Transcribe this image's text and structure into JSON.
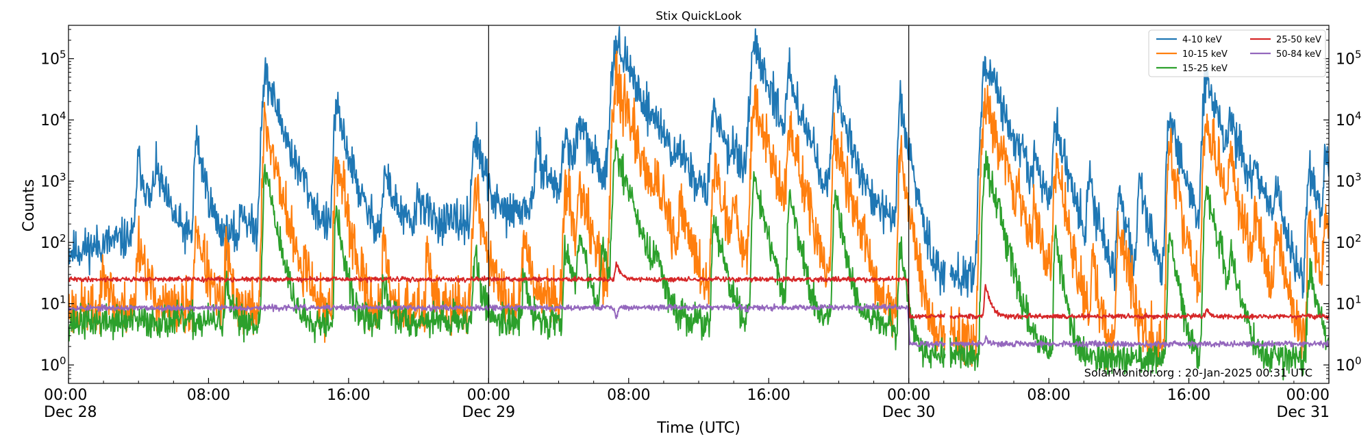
{
  "chart_data": {
    "type": "line",
    "title": "Stix QuickLook",
    "xlabel": "Time (UTC)",
    "ylabel": "Counts",
    "yscale": "log",
    "ylim": [
      0.5,
      350000
    ],
    "xlim_hours": [
      0,
      72
    ],
    "grid": false,
    "legend_location": "top-right",
    "day_separators_hours": [
      24,
      48
    ],
    "credit": "SolarMonitor.org : 20-Jan-2025 00:31 UTC",
    "x_ticks": [
      {
        "hour": 0,
        "time": "00:00",
        "date": "Dec 28"
      },
      {
        "hour": 8,
        "time": "08:00",
        "date": ""
      },
      {
        "hour": 16,
        "time": "16:00",
        "date": ""
      },
      {
        "hour": 24,
        "time": "00:00",
        "date": "Dec 29"
      },
      {
        "hour": 32,
        "time": "08:00",
        "date": ""
      },
      {
        "hour": 40,
        "time": "16:00",
        "date": ""
      },
      {
        "hour": 48,
        "time": "00:00",
        "date": "Dec 30"
      },
      {
        "hour": 56,
        "time": "08:00",
        "date": ""
      },
      {
        "hour": 64,
        "time": "16:00",
        "date": ""
      },
      {
        "hour": 72,
        "time": "00:00",
        "date": "Dec 31"
      }
    ],
    "y_ticks": [
      {
        "value": 1,
        "base": "10",
        "exp": "0"
      },
      {
        "value": 10,
        "base": "10",
        "exp": "1"
      },
      {
        "value": 100,
        "base": "10",
        "exp": "2"
      },
      {
        "value": 1000,
        "base": "10",
        "exp": "3"
      },
      {
        "value": 10000,
        "base": "10",
        "exp": "4"
      },
      {
        "value": 100000,
        "base": "10",
        "exp": "5"
      }
    ],
    "series": [
      {
        "name": "4-10 keV",
        "color": "#1f77b4",
        "background": [
          [
            0,
            70
          ],
          [
            3,
            110
          ],
          [
            4,
            130
          ],
          [
            6,
            100
          ],
          [
            8,
            110
          ],
          [
            12,
            150
          ],
          [
            16,
            140
          ],
          [
            20,
            180
          ],
          [
            23,
            220
          ],
          [
            24,
            200
          ],
          [
            26,
            350
          ],
          [
            28,
            500
          ],
          [
            30,
            700
          ],
          [
            31,
            1000
          ],
          [
            32,
            900
          ],
          [
            34,
            600
          ],
          [
            36,
            450
          ],
          [
            40,
            350
          ],
          [
            44,
            300
          ],
          [
            47,
            250
          ],
          [
            48,
            40
          ],
          [
            50,
            28
          ],
          [
            54,
            30
          ],
          [
            58,
            28
          ],
          [
            62,
            20
          ],
          [
            66,
            22
          ],
          [
            70,
            20
          ],
          [
            72,
            16
          ]
        ],
        "peaks": [
          [
            11.25,
            55000,
            0.5
          ],
          [
            15.3,
            15000,
            0.4
          ],
          [
            23.2,
            5000,
            0.4
          ],
          [
            31.3,
            180000,
            0.7
          ],
          [
            39.2,
            140000,
            0.6
          ],
          [
            41.2,
            50000,
            0.45
          ],
          [
            43.8,
            28000,
            0.45
          ],
          [
            47.5,
            18000,
            0.3
          ],
          [
            52.4,
            75000,
            0.6
          ],
          [
            56.4,
            8000,
            0.4
          ],
          [
            62.9,
            12000,
            0.4
          ],
          [
            65.0,
            45000,
            0.5
          ],
          [
            66.4,
            6000,
            0.5
          ],
          [
            7.3,
            5000,
            0.3
          ],
          [
            4.0,
            2200,
            0.35
          ],
          [
            5.0,
            1400,
            0.5
          ],
          [
            18.1,
            1300,
            0.4
          ],
          [
            28.4,
            5000,
            0.5
          ],
          [
            29.2,
            8000,
            0.5
          ],
          [
            33.5,
            4000,
            0.6
          ],
          [
            36.9,
            15000,
            0.5
          ],
          [
            38.0,
            2500,
            0.4
          ],
          [
            55.2,
            2000,
            0.4
          ],
          [
            58.3,
            1000,
            0.3
          ],
          [
            61.2,
            1000,
            0.3
          ],
          [
            67.8,
            1500,
            0.4
          ],
          [
            70.9,
            1500,
            0.4
          ],
          [
            71.8,
            2500,
            0.3
          ],
          [
            9.9,
            400,
            0.3
          ],
          [
            13.4,
            500,
            0.3
          ],
          [
            20.0,
            600,
            0.4
          ],
          [
            26.8,
            3000,
            0.5
          ],
          [
            35.0,
            2000,
            0.5
          ],
          [
            44.5,
            1000,
            0.4
          ],
          [
            60.0,
            600,
            0.3
          ],
          [
            69.0,
            800,
            0.3
          ]
        ],
        "noise": 0.22,
        "gaps": [
          [
            50.1,
            50.35
          ]
        ],
        "seed": 11
      },
      {
        "name": "10-15 keV",
        "color": "#ff7f0e",
        "background": [
          [
            0,
            8
          ],
          [
            10,
            8
          ],
          [
            20,
            8
          ],
          [
            23,
            9
          ],
          [
            24,
            10
          ],
          [
            28,
            12
          ],
          [
            32,
            13
          ],
          [
            40,
            10
          ],
          [
            47,
            9
          ],
          [
            48,
            3
          ],
          [
            56,
            2.5
          ],
          [
            64,
            2.2
          ],
          [
            72,
            2
          ]
        ],
        "peaks": [
          [
            11.25,
            9000,
            0.35
          ],
          [
            15.3,
            2200,
            0.3
          ],
          [
            31.3,
            45000,
            0.5
          ],
          [
            39.2,
            20000,
            0.45
          ],
          [
            41.2,
            8000,
            0.35
          ],
          [
            43.8,
            6000,
            0.35
          ],
          [
            47.5,
            3000,
            0.25
          ],
          [
            52.4,
            22000,
            0.5
          ],
          [
            56.4,
            2000,
            0.3
          ],
          [
            62.9,
            3000,
            0.3
          ],
          [
            65.0,
            10000,
            0.4
          ],
          [
            66.4,
            1500,
            0.35
          ],
          [
            23.2,
            800,
            0.3
          ],
          [
            7.3,
            200,
            0.3
          ],
          [
            4.0,
            120,
            0.3
          ],
          [
            28.4,
            700,
            0.35
          ],
          [
            29.2,
            900,
            0.35
          ],
          [
            33.5,
            600,
            0.4
          ],
          [
            36.9,
            1500,
            0.4
          ],
          [
            35.0,
            300,
            0.4
          ],
          [
            38.0,
            400,
            0.3
          ],
          [
            55.2,
            300,
            0.3
          ],
          [
            60.0,
            200,
            0.3
          ],
          [
            67.8,
            300,
            0.3
          ],
          [
            70.9,
            250,
            0.3
          ],
          [
            71.8,
            300,
            0.3
          ],
          [
            2.0,
            60,
            0.2
          ],
          [
            9.0,
            80,
            0.2
          ],
          [
            13.5,
            70,
            0.2
          ],
          [
            18.0,
            90,
            0.2
          ],
          [
            20.5,
            70,
            0.2
          ],
          [
            26.0,
            120,
            0.3
          ],
          [
            45.0,
            200,
            0.3
          ],
          [
            58.5,
            60,
            0.2
          ],
          [
            69.0,
            150,
            0.3
          ]
        ],
        "noise": 0.3,
        "gaps": [
          [
            50.1,
            50.35
          ]
        ],
        "seed": 23
      },
      {
        "name": "15-25 keV",
        "color": "#2ca02c",
        "background": [
          [
            0,
            5
          ],
          [
            24,
            5.5
          ],
          [
            30,
            5
          ],
          [
            40,
            5
          ],
          [
            47,
            5
          ],
          [
            48,
            1.5
          ],
          [
            60,
            1.3
          ],
          [
            72,
            1.2
          ]
        ],
        "peaks": [
          [
            11.25,
            1600,
            0.3
          ],
          [
            15.3,
            300,
            0.25
          ],
          [
            31.3,
            3500,
            0.45
          ],
          [
            39.2,
            1200,
            0.35
          ],
          [
            41.2,
            600,
            0.3
          ],
          [
            43.8,
            500,
            0.3
          ],
          [
            52.4,
            2000,
            0.4
          ],
          [
            65.0,
            800,
            0.35
          ],
          [
            62.9,
            150,
            0.25
          ],
          [
            56.4,
            120,
            0.25
          ],
          [
            47.5,
            100,
            0.2
          ],
          [
            23.2,
            60,
            0.25
          ],
          [
            28.4,
            100,
            0.3
          ],
          [
            29.2,
            150,
            0.3
          ],
          [
            36.9,
            200,
            0.35
          ],
          [
            30.5,
            80,
            0.3
          ],
          [
            33.5,
            60,
            0.3
          ],
          [
            66.4,
            60,
            0.3
          ],
          [
            70.9,
            40,
            0.3
          ],
          [
            9.0,
            20,
            0.2
          ],
          [
            18.0,
            25,
            0.2
          ],
          [
            26.0,
            30,
            0.2
          ]
        ],
        "noise": 0.18,
        "gaps": [
          [
            50.1,
            50.35
          ]
        ],
        "seed": 37
      },
      {
        "name": "25-50 keV",
        "color": "#d62728",
        "background": [
          [
            0,
            25
          ],
          [
            47.95,
            25
          ],
          [
            48.05,
            6.2
          ],
          [
            72,
            6.2
          ]
        ],
        "peaks": [
          [
            31.3,
            45,
            0.25
          ],
          [
            52.4,
            20,
            0.25
          ],
          [
            65.0,
            8,
            0.2
          ]
        ],
        "noise": 0.025,
        "gaps": [
          [
            50.1,
            50.35
          ]
        ],
        "seed": 41
      },
      {
        "name": "50-84 keV",
        "color": "#9467bd",
        "background": [
          [
            0,
            8.5
          ],
          [
            47.95,
            8.8
          ],
          [
            48.05,
            2.2
          ],
          [
            72,
            2.2
          ]
        ],
        "peaks": [
          [
            52.4,
            3,
            0.1
          ]
        ],
        "dips": [
          [
            31.3,
            6.5,
            0.3
          ],
          [
            38.8,
            7.5,
            0.2
          ]
        ],
        "noise": 0.03,
        "gaps": [
          [
            50.1,
            50.35
          ]
        ],
        "seed": 53
      }
    ]
  }
}
